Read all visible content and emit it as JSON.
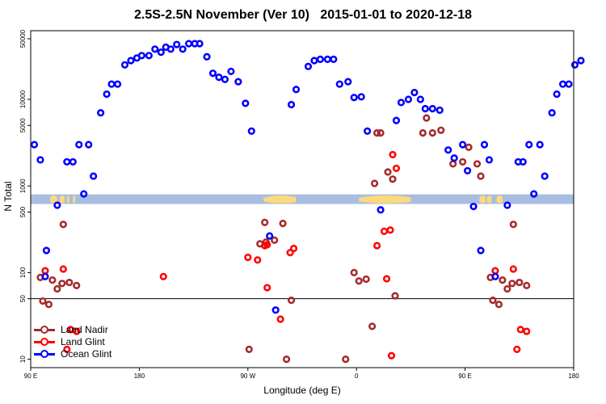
{
  "chart_data": {
    "type": "scatter",
    "title": "2.5S-2.5N November (Ver 10)   2015-01-01 to 2020-12-18",
    "xlabel": "Longitude (deg E)",
    "ylabel": "N Total",
    "x_ticks": [
      {
        "value": 90,
        "label": "90 E"
      },
      {
        "value": 180,
        "label": "180"
      },
      {
        "value": 270,
        "label": "90 W"
      },
      {
        "value": 360,
        "label": "0"
      },
      {
        "value": 450,
        "label": "90 E"
      },
      {
        "value": 540,
        "label": "180"
      }
    ],
    "y_ticks": [
      {
        "value": 10,
        "label": "10"
      },
      {
        "value": 50,
        "label": "50"
      },
      {
        "value": 100,
        "label": "100"
      },
      {
        "value": 500,
        "label": "500"
      },
      {
        "value": 1000,
        "label": "1000"
      },
      {
        "value": 5000,
        "label": "5000"
      },
      {
        "value": 10000,
        "label": "10000"
      },
      {
        "value": 50000,
        "label": "50000"
      }
    ],
    "xlim": [
      90,
      540
    ],
    "ylim": [
      8,
      62000
    ],
    "y_scale": "log",
    "reference_line_y": 50,
    "legend_position": "bottom-left",
    "series": [
      {
        "name": "Land Nadir",
        "color": "#a52a2a",
        "points": [
          [
            100,
            47
          ],
          [
            105,
            43
          ],
          [
            112,
            65
          ],
          [
            98,
            88
          ],
          [
            108,
            82
          ],
          [
            116,
            75
          ],
          [
            117,
            360
          ],
          [
            122,
            77
          ],
          [
            128,
            71
          ],
          [
            271,
            13
          ],
          [
            284,
            380
          ],
          [
            280,
            215
          ],
          [
            285,
            225
          ],
          [
            292,
            237
          ],
          [
            299,
            370
          ],
          [
            302,
            10
          ],
          [
            306,
            48
          ],
          [
            351,
            10
          ],
          [
            358,
            100
          ],
          [
            362,
            80
          ],
          [
            368,
            84
          ],
          [
            373,
            24
          ],
          [
            375,
            1070
          ],
          [
            377,
            4100
          ],
          [
            380,
            4100
          ],
          [
            386,
            1450
          ],
          [
            390,
            1200
          ],
          [
            392,
            54
          ],
          [
            415,
            4100
          ],
          [
            418,
            6100
          ],
          [
            423,
            4100
          ],
          [
            430,
            4400
          ],
          [
            440,
            1800
          ],
          [
            448,
            1900
          ],
          [
            453,
            2800
          ],
          [
            460,
            1800
          ],
          [
            463,
            1300
          ],
          [
            473,
            48
          ],
          [
            478,
            43
          ],
          [
            485,
            65
          ],
          [
            471,
            88
          ],
          [
            481,
            82
          ],
          [
            489,
            75
          ],
          [
            490,
            360
          ],
          [
            495,
            77
          ],
          [
            501,
            71
          ]
        ]
      },
      {
        "name": "Land Glint",
        "color": "#ff0000",
        "points": [
          [
            102,
            105
          ],
          [
            117,
            110
          ],
          [
            128,
            21
          ],
          [
            123,
            22
          ],
          [
            120,
            13
          ],
          [
            200,
            90
          ],
          [
            270,
            150
          ],
          [
            278,
            140
          ],
          [
            284,
            205
          ],
          [
            286,
            210
          ],
          [
            286,
            67
          ],
          [
            297,
            29
          ],
          [
            305,
            170
          ],
          [
            308,
            190
          ],
          [
            377,
            205
          ],
          [
            383,
            300
          ],
          [
            389,
            11
          ],
          [
            388,
            310
          ],
          [
            390,
            2300
          ],
          [
            393,
            1600
          ],
          [
            385,
            85
          ],
          [
            475,
            105
          ],
          [
            490,
            110
          ],
          [
            501,
            21
          ],
          [
            496,
            22
          ],
          [
            493,
            13
          ]
        ]
      },
      {
        "name": "Ocean Glint",
        "color": "#0000ff",
        "points": [
          [
            93,
            3000
          ],
          [
            98,
            2000
          ],
          [
            102,
            90
          ],
          [
            103,
            180
          ],
          [
            112,
            600
          ],
          [
            120,
            1900
          ],
          [
            125,
            1900
          ],
          [
            130,
            3000
          ],
          [
            134,
            810
          ],
          [
            138,
            3000
          ],
          [
            142,
            1300
          ],
          [
            148,
            7000
          ],
          [
            153,
            11500
          ],
          [
            157,
            15000
          ],
          [
            162,
            15000
          ],
          [
            168,
            25000
          ],
          [
            173,
            28000
          ],
          [
            178,
            30000
          ],
          [
            182,
            32000
          ],
          [
            188,
            32000
          ],
          [
            193,
            38000
          ],
          [
            198,
            35000
          ],
          [
            202,
            40000
          ],
          [
            206,
            38000
          ],
          [
            211,
            43000
          ],
          [
            216,
            38000
          ],
          [
            221,
            44000
          ],
          [
            226,
            44000
          ],
          [
            230,
            44000
          ],
          [
            236,
            31000
          ],
          [
            241,
            20000
          ],
          [
            246,
            18000
          ],
          [
            251,
            17000
          ],
          [
            256,
            21000
          ],
          [
            262,
            16000
          ],
          [
            268,
            9000
          ],
          [
            273,
            4300
          ],
          [
            288,
            265
          ],
          [
            293,
            37
          ],
          [
            306,
            8700
          ],
          [
            310,
            13000
          ],
          [
            320,
            24000
          ],
          [
            325,
            28000
          ],
          [
            330,
            29000
          ],
          [
            336,
            29000
          ],
          [
            341,
            29000
          ],
          [
            346,
            15000
          ],
          [
            353,
            16000
          ],
          [
            358,
            10500
          ],
          [
            364,
            10700
          ],
          [
            369,
            4300
          ],
          [
            380,
            530
          ],
          [
            393,
            5700
          ],
          [
            397,
            9200
          ],
          [
            403,
            10000
          ],
          [
            408,
            12000
          ],
          [
            413,
            10000
          ],
          [
            417,
            7800
          ],
          [
            423,
            7800
          ],
          [
            429,
            7500
          ],
          [
            436,
            2600
          ],
          [
            441,
            2100
          ],
          [
            448,
            3000
          ],
          [
            452,
            1500
          ],
          [
            457,
            580
          ],
          [
            463,
            180
          ],
          [
            466,
            3000
          ],
          [
            470,
            2000
          ],
          [
            475,
            90
          ],
          [
            485,
            600
          ],
          [
            494,
            1900
          ],
          [
            498,
            1900
          ],
          [
            503,
            3000
          ],
          [
            507,
            810
          ],
          [
            512,
            3000
          ],
          [
            516,
            1300
          ],
          [
            522,
            7000
          ],
          [
            526,
            11500
          ],
          [
            531,
            15000
          ],
          [
            536,
            15000
          ],
          [
            541,
            25000
          ],
          [
            546,
            28000
          ]
        ]
      }
    ],
    "map_strip": {
      "y_range": [
        620,
        800
      ],
      "ocean_color": "#a8bee0",
      "land_color": "#fdd97c",
      "land_spans": [
        [
          106,
          112
        ],
        [
          114,
          118
        ],
        [
          120,
          122
        ],
        [
          125,
          127
        ],
        [
          283,
          310
        ],
        [
          362,
          405
        ],
        [
          462,
          467
        ],
        [
          468,
          472
        ],
        [
          476,
          481
        ]
      ]
    }
  }
}
